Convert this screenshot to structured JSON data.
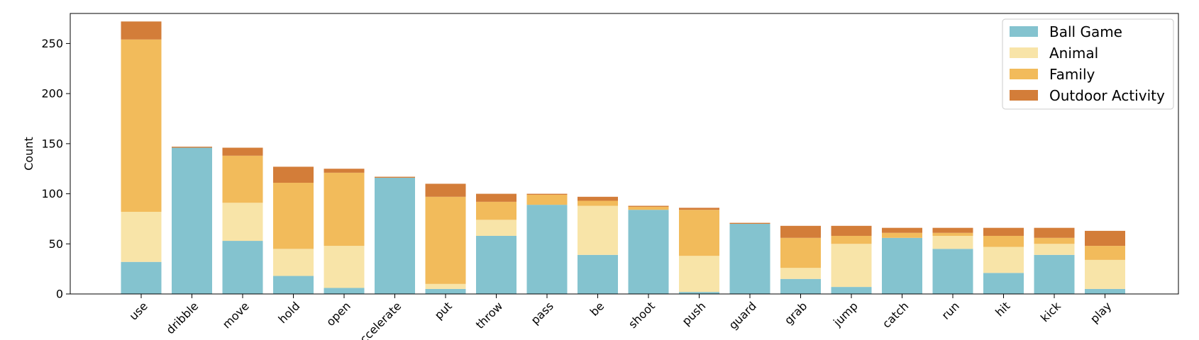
{
  "chart_data": {
    "type": "bar",
    "stacked": true,
    "title": "",
    "xlabel": "",
    "ylabel": "Count",
    "ylim": [
      0,
      280
    ],
    "yticks": [
      0,
      50,
      100,
      150,
      200,
      250
    ],
    "legend_position": "top-right",
    "categories": [
      "use",
      "dribble",
      "move",
      "hold",
      "open",
      "accelerate",
      "put",
      "throw",
      "pass",
      "be",
      "shoot",
      "push",
      "guard",
      "grab",
      "jump",
      "catch",
      "run",
      "hit",
      "kick",
      "play"
    ],
    "series": [
      {
        "name": "Ball Game",
        "color": "#84c3cf",
        "values": [
          32,
          146,
          53,
          18,
          6,
          116,
          5,
          58,
          89,
          39,
          84,
          2,
          70,
          15,
          7,
          56,
          45,
          21,
          39,
          5
        ]
      },
      {
        "name": "Animal",
        "color": "#f8e4a8",
        "values": [
          50,
          0,
          38,
          27,
          42,
          0,
          5,
          16,
          0,
          49,
          0,
          36,
          0,
          11,
          43,
          0,
          13,
          26,
          11,
          29
        ]
      },
      {
        "name": "Family",
        "color": "#f2bb5b",
        "values": [
          172,
          0,
          47,
          66,
          73,
          0,
          87,
          18,
          10,
          5,
          3,
          46,
          0,
          30,
          8,
          5,
          3,
          11,
          6,
          14
        ]
      },
      {
        "name": "Outdoor Activity",
        "color": "#d37d39",
        "values": [
          18,
          1,
          8,
          16,
          4,
          1,
          13,
          8,
          1,
          4,
          1,
          2,
          1,
          12,
          10,
          5,
          5,
          8,
          10,
          15
        ]
      }
    ]
  }
}
